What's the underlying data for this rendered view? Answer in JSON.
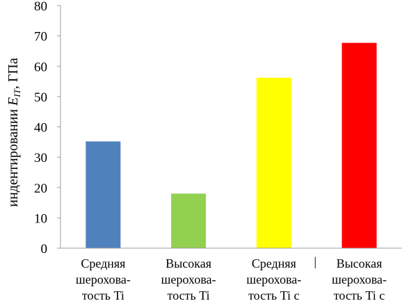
{
  "chart_data": {
    "type": "bar",
    "title": "",
    "xlabel": "",
    "ylabel": {
      "prefix": "индентировании ",
      "symbol": "E",
      "subscript": "IT",
      "suffix": ", ГПа"
    },
    "ylim": [
      0,
      80
    ],
    "yticks": [
      0,
      10,
      20,
      30,
      40,
      50,
      60,
      70,
      80
    ],
    "grid": false,
    "categories": [
      [
        "Средняя",
        "шерохова-",
        "тость Ti"
      ],
      [
        "Высокая",
        "шерохова-",
        "тость Ti"
      ],
      [
        "Средняя",
        "шерохова-",
        "тость Ti с"
      ],
      [
        "Высокая",
        "шерохова-",
        "тость Ti с"
      ]
    ],
    "values": [
      35.2,
      18.0,
      56.2,
      67.7
    ],
    "colors": [
      "#4f81bd",
      "#92d050",
      "#ffff00",
      "#ff0000"
    ],
    "separator_mark": "|"
  }
}
